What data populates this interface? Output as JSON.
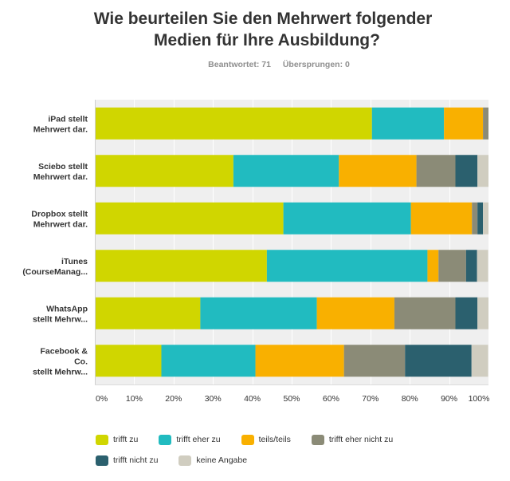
{
  "header": {
    "title_line1": "Wie beurteilen Sie den Mehrwert folgender",
    "title_line2": "Medien für Ihre Ausbildung?",
    "answered": "Beantwortet: 71",
    "skipped": "Übersprungen: 0"
  },
  "chart_data": {
    "type": "bar",
    "orientation": "horizontal",
    "stacked": "percent",
    "title": "Wie beurteilen Sie den Mehrwert folgender Medien für Ihre Ausbildung?",
    "xlabel": "",
    "ylabel": "",
    "xlim": [
      0,
      100
    ],
    "grid": true,
    "legend_position": "bottom",
    "x_ticks": [
      "0%",
      "10%",
      "20%",
      "30%",
      "40%",
      "50%",
      "60%",
      "70%",
      "80%",
      "90%",
      "100%"
    ],
    "categories": [
      [
        "iPad stellt",
        "Mehrwert dar."
      ],
      [
        "Sciebo stellt",
        "Mehrwert dar."
      ],
      [
        "Dropbox stellt",
        "Mehrwert dar."
      ],
      [
        "iTunes",
        "(CourseManag..."
      ],
      [
        "WhatsApp",
        "stellt Mehrw..."
      ],
      [
        "Facebook &",
        "Co.",
        "stellt Mehrw..."
      ]
    ],
    "series": [
      {
        "name": "trifft zu",
        "color": "#d0d600",
        "values": [
          70.4,
          35.2,
          47.9,
          43.7,
          26.8,
          16.9
        ]
      },
      {
        "name": "trifft eher zu",
        "color": "#21bbc0",
        "values": [
          18.3,
          26.8,
          32.4,
          40.8,
          29.6,
          23.9
        ]
      },
      {
        "name": "teils/teils",
        "color": "#f9b000",
        "values": [
          9.9,
          19.7,
          15.5,
          2.8,
          19.7,
          22.5
        ]
      },
      {
        "name": "trifft eher nicht zu",
        "color": "#8b8b77",
        "values": [
          1.4,
          9.9,
          1.4,
          7.0,
          15.5,
          15.5
        ]
      },
      {
        "name": "trifft nicht zu",
        "color": "#2b606e",
        "values": [
          0,
          5.6,
          1.4,
          2.8,
          5.6,
          16.9
        ]
      },
      {
        "name": "keine Angabe",
        "color": "#d0cdc0",
        "values": [
          0,
          2.8,
          1.4,
          2.8,
          2.8,
          4.2
        ]
      }
    ]
  }
}
